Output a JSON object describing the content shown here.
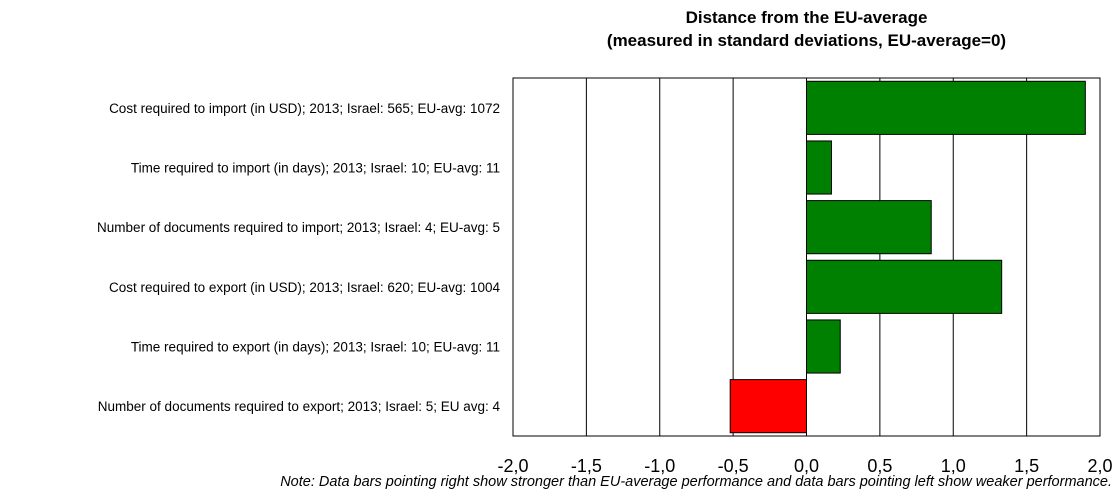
{
  "chart_data": {
    "type": "bar",
    "orientation": "horizontal",
    "title": "Distance from the EU-average",
    "subtitle": "(measured in standard deviations, EU-average=0)",
    "categories": [
      "Cost required to import (in USD); 2013; Israel: 565; EU-avg: 1072",
      "Time required to import (in days); 2013; Israel: 10; EU-avg: 11",
      "Number of documents required to import; 2013; Israel: 4; EU-avg: 5",
      "Cost required to export (in USD); 2013; Israel: 620; EU-avg: 1004",
      "Time required to export (in days); 2013; Israel: 10; EU-avg: 11",
      "Number of documents required to export; 2013; Israel: 5; EU avg: 4"
    ],
    "values": [
      1.9,
      0.17,
      0.85,
      1.33,
      0.23,
      -0.52
    ],
    "xlim": [
      -2.0,
      2.0
    ],
    "xticks": [
      "-2,0",
      "-1,5",
      "-1,0",
      "-0,5",
      "0,0",
      "0,5",
      "1,0",
      "1,5",
      "2,0"
    ],
    "grid": true,
    "colors": {
      "positive": "#008000",
      "negative": "#ff0000"
    },
    "note": "Note: Data bars pointing right show stronger than EU-average performance and data bars pointing left show weaker performance."
  }
}
